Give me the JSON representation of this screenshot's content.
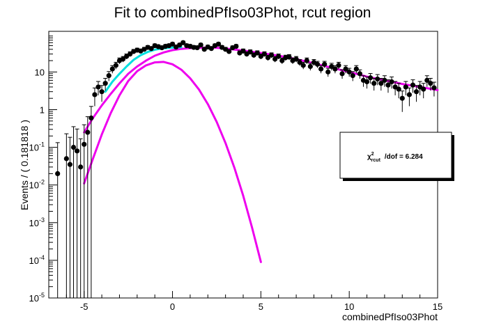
{
  "chart_data": {
    "type": "scatter",
    "title": "Fit to combinedPfIso03Phot, rcut region",
    "xlabel": "combinedPfIso03Phot",
    "ylabel": "Events / ( 0.181818 )",
    "xlim": [
      -7,
      15
    ],
    "ylim": [
      1e-05,
      120
    ],
    "y_scale": "log",
    "x_ticks": [
      -5,
      0,
      5,
      10,
      15
    ],
    "y_ticks": [
      {
        "base": "10",
        "exp": "-5",
        "value": 1e-05
      },
      {
        "base": "10",
        "exp": "-4",
        "value": 0.0001
      },
      {
        "base": "10",
        "exp": "-3",
        "value": 0.001
      },
      {
        "base": "10",
        "exp": "-2",
        "value": 0.01
      },
      {
        "base": "10",
        "exp": "-1",
        "value": 0.1
      },
      {
        "base": "1",
        "exp": "",
        "value": 1
      },
      {
        "base": "10",
        "exp": "",
        "value": 10
      }
    ],
    "annotation": {
      "chi_symbol": "χ",
      "chi_sup": "2",
      "chi_sub": "rcut",
      "text": "/dof = 6.284"
    },
    "colors": {
      "data": "#000000",
      "total_fit": "#00e0e0",
      "components": "#ee00ee"
    },
    "data": [
      {
        "x": -6.5,
        "y": 0.02
      },
      {
        "x": -6.0,
        "y": 0.05
      },
      {
        "x": -5.8,
        "y": 0.035
      },
      {
        "x": -5.6,
        "y": 0.1
      },
      {
        "x": -5.4,
        "y": 0.08
      },
      {
        "x": -5.2,
        "y": 0.03
      },
      {
        "x": -5.0,
        "y": 0.12
      },
      {
        "x": -4.8,
        "y": 0.25
      },
      {
        "x": -4.6,
        "y": 0.6
      },
      {
        "x": -4.4,
        "y": 2.5
      },
      {
        "x": -4.2,
        "y": 4.0
      },
      {
        "x": -4.0,
        "y": 3.0
      },
      {
        "x": -3.8,
        "y": 5.0
      },
      {
        "x": -3.6,
        "y": 8.0
      },
      {
        "x": -3.4,
        "y": 12.0
      },
      {
        "x": -3.2,
        "y": 15.0
      },
      {
        "x": -3.0,
        "y": 20.0
      },
      {
        "x": -2.8,
        "y": 22.0
      },
      {
        "x": -2.6,
        "y": 26.0
      },
      {
        "x": -2.4,
        "y": 30.0
      },
      {
        "x": -2.2,
        "y": 35.0
      },
      {
        "x": -2.0,
        "y": 38.0
      },
      {
        "x": -1.8,
        "y": 36.0
      },
      {
        "x": -1.6,
        "y": 40.0
      },
      {
        "x": -1.4,
        "y": 45.0
      },
      {
        "x": -1.2,
        "y": 42.0
      },
      {
        "x": -1.0,
        "y": 50.0
      },
      {
        "x": -0.8,
        "y": 47.0
      },
      {
        "x": -0.6,
        "y": 44.0
      },
      {
        "x": -0.4,
        "y": 48.0
      },
      {
        "x": -0.2,
        "y": 50.0
      },
      {
        "x": 0.0,
        "y": 55.0
      },
      {
        "x": 0.2,
        "y": 46.0
      },
      {
        "x": 0.4,
        "y": 52.0
      },
      {
        "x": 0.6,
        "y": 60.0
      },
      {
        "x": 0.8,
        "y": 50.0
      },
      {
        "x": 1.0,
        "y": 48.0
      },
      {
        "x": 1.2,
        "y": 45.0
      },
      {
        "x": 1.4,
        "y": 44.0
      },
      {
        "x": 1.6,
        "y": 52.0
      },
      {
        "x": 1.8,
        "y": 40.0
      },
      {
        "x": 2.0,
        "y": 46.0
      },
      {
        "x": 2.2,
        "y": 42.0
      },
      {
        "x": 2.4,
        "y": 50.0
      },
      {
        "x": 2.6,
        "y": 55.0
      },
      {
        "x": 2.8,
        "y": 45.0
      },
      {
        "x": 3.0,
        "y": 40.0
      },
      {
        "x": 3.2,
        "y": 35.0
      },
      {
        "x": 3.4,
        "y": 44.0
      },
      {
        "x": 3.6,
        "y": 48.0
      },
      {
        "x": 3.8,
        "y": 32.0
      },
      {
        "x": 4.0,
        "y": 36.0
      },
      {
        "x": 4.2,
        "y": 30.0
      },
      {
        "x": 4.4,
        "y": 34.0
      },
      {
        "x": 4.6,
        "y": 28.0
      },
      {
        "x": 4.8,
        "y": 32.0
      },
      {
        "x": 5.0,
        "y": 26.0
      },
      {
        "x": 5.2,
        "y": 30.0
      },
      {
        "x": 5.4,
        "y": 24.0
      },
      {
        "x": 5.6,
        "y": 28.0
      },
      {
        "x": 5.8,
        "y": 22.0
      },
      {
        "x": 6.0,
        "y": 26.0
      },
      {
        "x": 6.2,
        "y": 20.0
      },
      {
        "x": 6.4,
        "y": 24.0
      },
      {
        "x": 6.6,
        "y": 25.0
      },
      {
        "x": 6.8,
        "y": 20.0
      },
      {
        "x": 7.0,
        "y": 22.0
      },
      {
        "x": 7.2,
        "y": 18.0
      },
      {
        "x": 7.4,
        "y": 15.0
      },
      {
        "x": 7.6,
        "y": 20.0
      },
      {
        "x": 7.8,
        "y": 14.0
      },
      {
        "x": 8.0,
        "y": 18.0
      },
      {
        "x": 8.2,
        "y": 16.0
      },
      {
        "x": 8.4,
        "y": 12.0
      },
      {
        "x": 8.6,
        "y": 16.0
      },
      {
        "x": 8.8,
        "y": 10.0
      },
      {
        "x": 9.0,
        "y": 14.0
      },
      {
        "x": 9.2,
        "y": 12.0
      },
      {
        "x": 9.4,
        "y": 15.0
      },
      {
        "x": 9.6,
        "y": 9.0
      },
      {
        "x": 9.8,
        "y": 12.0
      },
      {
        "x": 10.0,
        "y": 10.0
      },
      {
        "x": 10.2,
        "y": 8.0
      },
      {
        "x": 10.4,
        "y": 12.0
      },
      {
        "x": 10.6,
        "y": 9.0
      },
      {
        "x": 10.8,
        "y": 6.0
      },
      {
        "x": 11.0,
        "y": 5.5
      },
      {
        "x": 11.2,
        "y": 7.0
      },
      {
        "x": 11.4,
        "y": 5.0
      },
      {
        "x": 11.6,
        "y": 6.5
      },
      {
        "x": 11.8,
        "y": 5.0
      },
      {
        "x": 12.0,
        "y": 6.0
      },
      {
        "x": 12.2,
        "y": 4.5
      },
      {
        "x": 12.4,
        "y": 5.5
      },
      {
        "x": 12.6,
        "y": 4.0
      },
      {
        "x": 12.8,
        "y": 3.5
      },
      {
        "x": 13.0,
        "y": 2.0
      },
      {
        "x": 13.2,
        "y": 4.0
      },
      {
        "x": 13.4,
        "y": 2.5
      },
      {
        "x": 13.6,
        "y": 4.5
      },
      {
        "x": 13.8,
        "y": 3.0
      },
      {
        "x": 14.0,
        "y": 4.0
      },
      {
        "x": 14.2,
        "y": 3.5
      },
      {
        "x": 14.4,
        "y": 6.0
      },
      {
        "x": 14.6,
        "y": 5.0
      },
      {
        "x": 14.8,
        "y": 3.8
      }
    ],
    "curves": [
      {
        "color": "#ee00ee",
        "points": [
          [
            -5.0,
            0.25
          ],
          [
            -4.5,
            0.6
          ],
          [
            -4.0,
            1.3
          ],
          [
            -3.5,
            2.6
          ],
          [
            -3.0,
            5.0
          ],
          [
            -2.5,
            9.0
          ],
          [
            -2.0,
            14.0
          ],
          [
            -1.5,
            20.0
          ],
          [
            -1.0,
            27.0
          ],
          [
            -0.5,
            33.0
          ],
          [
            0.0,
            38.0
          ],
          [
            0.5,
            41.0
          ],
          [
            1.0,
            43.0
          ],
          [
            1.5,
            44.0
          ],
          [
            2.0,
            44.5
          ],
          [
            2.5,
            44.0
          ],
          [
            3.0,
            42.0
          ],
          [
            4.0,
            37.0
          ],
          [
            5.0,
            32.0
          ],
          [
            6.0,
            27.0
          ],
          [
            7.0,
            22.0
          ],
          [
            8.0,
            17.0
          ],
          [
            9.0,
            13.0
          ],
          [
            10.0,
            10.0
          ],
          [
            11.0,
            7.5
          ],
          [
            12.0,
            6.0
          ],
          [
            13.0,
            4.8
          ],
          [
            14.0,
            4.0
          ],
          [
            15.0,
            3.3
          ]
        ]
      },
      {
        "color": "#ee00ee",
        "points": [
          [
            -5.0,
            0.011
          ],
          [
            -4.5,
            0.05
          ],
          [
            -4.0,
            0.22
          ],
          [
            -3.5,
            0.8
          ],
          [
            -3.0,
            2.4
          ],
          [
            -2.5,
            5.8
          ],
          [
            -2.0,
            10.5
          ],
          [
            -1.5,
            15.0
          ],
          [
            -1.0,
            18.0
          ],
          [
            -0.5,
            18.5
          ],
          [
            0.0,
            16.0
          ],
          [
            0.5,
            11.5
          ],
          [
            1.0,
            6.8
          ],
          [
            1.5,
            3.4
          ],
          [
            2.0,
            1.4
          ],
          [
            2.5,
            0.47
          ],
          [
            3.0,
            0.13
          ],
          [
            3.5,
            0.029
          ],
          [
            4.0,
            0.0052
          ],
          [
            4.5,
            0.00074
          ],
          [
            5.0,
            9e-05
          ]
        ]
      },
      {
        "color": "#00e0e0",
        "points": [
          [
            -3.8,
            3.0
          ],
          [
            -3.4,
            5.5
          ],
          [
            -3.0,
            9.0
          ],
          [
            -2.6,
            14.0
          ],
          [
            -2.2,
            21.0
          ],
          [
            -1.8,
            28.0
          ],
          [
            -1.4,
            34.0
          ],
          [
            -1.0,
            39.0
          ],
          [
            -0.6,
            42.0
          ],
          [
            -0.2,
            44.0
          ],
          [
            0.2,
            45.0
          ],
          [
            0.5,
            45.5
          ]
        ]
      }
    ]
  }
}
